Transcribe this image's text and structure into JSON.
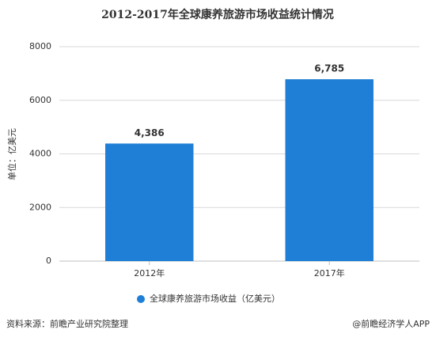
{
  "chart_data": {
    "type": "bar",
    "title": "2012-2017年全球康养旅游市场收益统计情况",
    "y_label": "单位：亿美元",
    "categories": [
      "2012年",
      "2017年"
    ],
    "series": [
      {
        "name": "全球康养旅游市场收益（亿美元）",
        "color": "#1f7fd6",
        "values": [
          4386,
          6785
        ],
        "value_labels": [
          "4,386",
          "6,785"
        ]
      }
    ],
    "ylim": [
      0,
      8000
    ],
    "yticks": [
      0,
      2000,
      4000,
      6000,
      8000
    ],
    "grid": true,
    "source": "资料来源：前瞻产业研究院整理",
    "credit": "@前瞻经济学人APP"
  }
}
